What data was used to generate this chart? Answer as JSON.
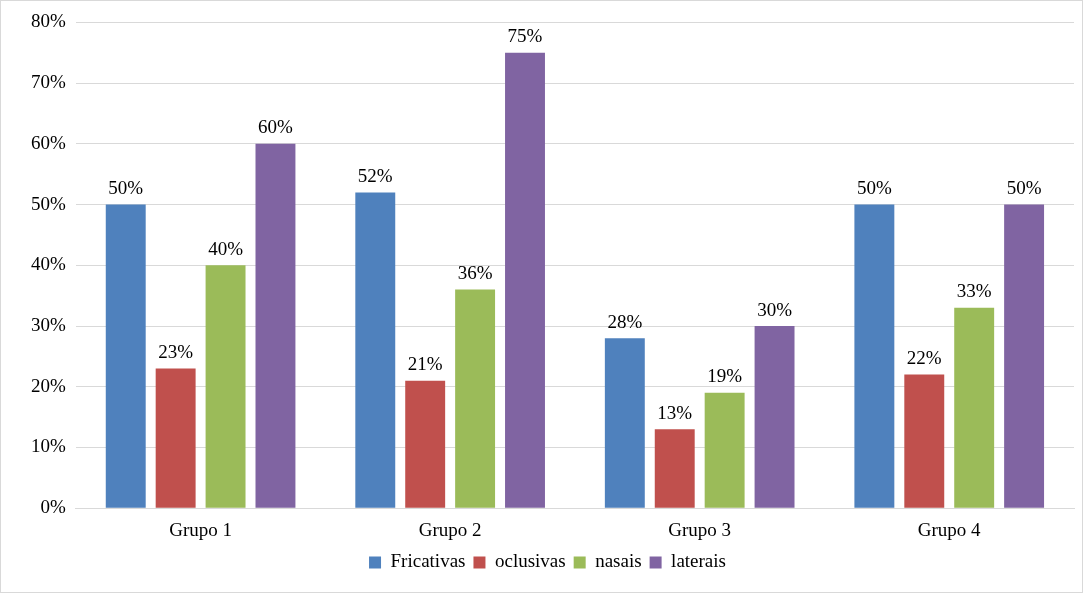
{
  "chart_data": {
    "type": "bar",
    "categories": [
      "Grupo 1",
      "Grupo 2",
      "Grupo 3",
      "Grupo 4"
    ],
    "series": [
      {
        "name": "Fricativas",
        "color": "#4f81bd",
        "values": [
          50,
          52,
          28,
          50
        ],
        "value_labels": [
          "50%",
          "52%",
          "28%",
          "50%"
        ]
      },
      {
        "name": "oclusivas",
        "color": "#c0504d",
        "values": [
          23,
          21,
          13,
          22
        ],
        "value_labels": [
          "23%",
          "21%",
          "13%",
          "22%"
        ]
      },
      {
        "name": "nasais",
        "color": "#9bbb59",
        "values": [
          40,
          36,
          19,
          33
        ],
        "value_labels": [
          "40%",
          "36%",
          "19%",
          "33%"
        ]
      },
      {
        "name": "laterais",
        "color": "#8064a2",
        "values": [
          60,
          75,
          30,
          50
        ],
        "value_labels": [
          "60%",
          "75%",
          "30%",
          "50%"
        ]
      }
    ],
    "ylim": [
      0,
      80
    ],
    "yticks": [
      {
        "value": 0,
        "label": "0%"
      },
      {
        "value": 10,
        "label": "10%"
      },
      {
        "value": 20,
        "label": "20%"
      },
      {
        "value": 30,
        "label": "30%"
      },
      {
        "value": 40,
        "label": "40%"
      },
      {
        "value": 50,
        "label": "50%"
      },
      {
        "value": 60,
        "label": "60%"
      },
      {
        "value": 70,
        "label": "70%"
      },
      {
        "value": 80,
        "label": "80%"
      }
    ],
    "grid": "y",
    "legend": "bottom"
  }
}
